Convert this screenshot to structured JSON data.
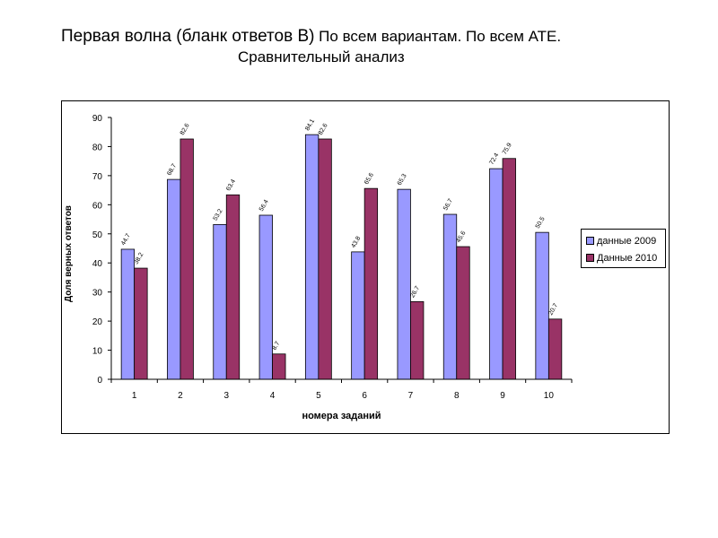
{
  "title": {
    "part1": "Первая волна (бланк ответов В)",
    "part2": " По всем вариантам. По всем АТЕ.",
    "line2": "Сравнительный анализ"
  },
  "chart_data": {
    "type": "bar",
    "categories": [
      "1",
      "2",
      "3",
      "4",
      "5",
      "6",
      "7",
      "8",
      "9",
      "10"
    ],
    "series": [
      {
        "name": "данные 2009",
        "color": "#9999ff",
        "values": [
          44.7,
          68.7,
          53.2,
          56.4,
          84.1,
          43.8,
          65.3,
          56.7,
          72.4,
          50.5
        ]
      },
      {
        "name": "Данные 2010",
        "color": "#993366",
        "values": [
          38.2,
          82.6,
          63.4,
          8.7,
          82.6,
          65.6,
          26.7,
          45.6,
          75.9,
          20.7
        ]
      }
    ],
    "xlabel": "номера заданий",
    "ylabel": "Доля верных ответов",
    "ylim": [
      0,
      90
    ],
    "yticks": [
      0,
      10,
      20,
      30,
      40,
      50,
      60,
      70,
      80,
      90
    ],
    "grid": false,
    "legend": "right"
  }
}
